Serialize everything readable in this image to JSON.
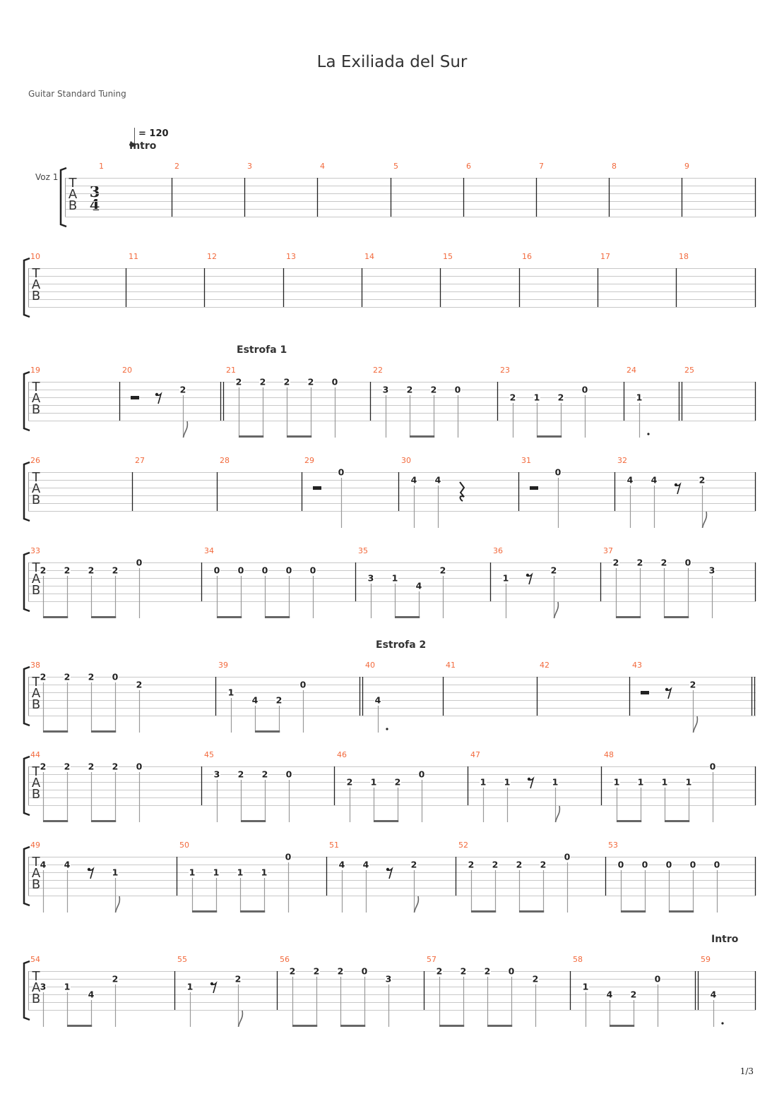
{
  "title": "La Exiliada del Sur",
  "tuning": "Guitar Standard Tuning",
  "track_name": "Voz 1",
  "tempo": {
    "label": "= 120",
    "value": 120
  },
  "time_signature": {
    "beats": "3",
    "beat_type": "4"
  },
  "tab_clef": [
    "T",
    "A",
    "B"
  ],
  "page_number": "1/3",
  "colors": {
    "measure_number": "#f26a3d",
    "staff_line": "#c8c8c8",
    "barline": "#222222",
    "stem": "#999999",
    "beam": "#666666"
  },
  "systems": [
    [
      1,
      2,
      3,
      4,
      5,
      6,
      7,
      8,
      9
    ],
    [
      10,
      11,
      12,
      13,
      14,
      15,
      16,
      17,
      18
    ],
    [
      19,
      20,
      21,
      22,
      23,
      24,
      25
    ],
    [
      26,
      27,
      28,
      29,
      30,
      31,
      32
    ],
    [
      33,
      34,
      35,
      36,
      37
    ],
    [
      38,
      39,
      40,
      41,
      42,
      43
    ],
    [
      44,
      45,
      46,
      47,
      48
    ],
    [
      49,
      50,
      51,
      52,
      53
    ],
    [
      54,
      55,
      56,
      57,
      58,
      59
    ]
  ],
  "measures": {
    "20": {
      "end": "double",
      "events": [
        {
          "rest": "h"
        },
        {
          "rest": "8"
        },
        {
          "d": "8",
          "s": 2,
          "f": 2
        }
      ]
    },
    "21": {
      "section": "Estrofa 1",
      "events": [
        {
          "d": "8",
          "s": 1,
          "f": 2
        },
        {
          "d": "8",
          "s": 1,
          "f": 2
        },
        {
          "d": "8",
          "s": 1,
          "f": 2
        },
        {
          "d": "8",
          "s": 1,
          "f": 2
        },
        {
          "d": "q",
          "s": 1,
          "f": 0
        }
      ]
    },
    "22": {
      "events": [
        {
          "d": "q",
          "s": 2,
          "f": 3
        },
        {
          "d": "8",
          "s": 2,
          "f": 2
        },
        {
          "d": "8",
          "s": 2,
          "f": 2
        },
        {
          "d": "q",
          "s": 2,
          "f": 0
        }
      ]
    },
    "23": {
      "events": [
        {
          "d": "q",
          "s": 3,
          "f": 2
        },
        {
          "d": "8",
          "s": 3,
          "f": 1
        },
        {
          "d": "8",
          "s": 3,
          "f": 2
        },
        {
          "d": "q",
          "s": 2,
          "f": 0
        }
      ]
    },
    "24": {
      "end": "double",
      "events": [
        {
          "d": "h.",
          "s": 3,
          "f": 1
        }
      ]
    },
    "29": {
      "events": [
        {
          "rest": "h"
        },
        {
          "d": "q",
          "s": 1,
          "f": 0
        }
      ]
    },
    "30": {
      "events": [
        {
          "d": "q",
          "s": 2,
          "f": 4
        },
        {
          "d": "q",
          "s": 2,
          "f": 4
        },
        {
          "rest": "q"
        }
      ]
    },
    "31": {
      "events": [
        {
          "rest": "h"
        },
        {
          "d": "q",
          "s": 1,
          "f": 0
        }
      ]
    },
    "32": {
      "events": [
        {
          "d": "q",
          "s": 2,
          "f": 4
        },
        {
          "d": "q",
          "s": 2,
          "f": 4
        },
        {
          "rest": "8"
        },
        {
          "d": "8",
          "s": 2,
          "f": 2
        }
      ]
    },
    "33": {
      "events": [
        {
          "d": "8",
          "s": 2,
          "f": 2
        },
        {
          "d": "8",
          "s": 2,
          "f": 2
        },
        {
          "d": "8",
          "s": 2,
          "f": 2
        },
        {
          "d": "8",
          "s": 2,
          "f": 2
        },
        {
          "d": "q",
          "s": 1,
          "f": 0
        }
      ]
    },
    "34": {
      "events": [
        {
          "d": "8",
          "s": 2,
          "f": 0
        },
        {
          "d": "8",
          "s": 2,
          "f": 0
        },
        {
          "d": "8",
          "s": 2,
          "f": 0
        },
        {
          "d": "8",
          "s": 2,
          "f": 0
        },
        {
          "d": "q",
          "s": 2,
          "f": 0
        }
      ]
    },
    "35": {
      "events": [
        {
          "d": "q",
          "s": 3,
          "f": 3
        },
        {
          "d": "8",
          "s": 3,
          "f": 1
        },
        {
          "d": "8",
          "s": 4,
          "f": 4
        },
        {
          "d": "q",
          "s": 2,
          "f": 2
        }
      ]
    },
    "36": {
      "events": [
        {
          "d": "h",
          "s": 3,
          "f": 1
        },
        {
          "rest": "8"
        },
        {
          "d": "8",
          "s": 2,
          "f": 2
        }
      ]
    },
    "37": {
      "events": [
        {
          "d": "8",
          "s": 1,
          "f": 2
        },
        {
          "d": "8",
          "s": 1,
          "f": 2
        },
        {
          "d": "8",
          "s": 1,
          "f": 2
        },
        {
          "d": "8",
          "s": 1,
          "f": 0
        },
        {
          "d": "q",
          "s": 2,
          "f": 3
        }
      ]
    },
    "38": {
      "events": [
        {
          "d": "8",
          "s": 1,
          "f": 2
        },
        {
          "d": "8",
          "s": 1,
          "f": 2
        },
        {
          "d": "8",
          "s": 1,
          "f": 2
        },
        {
          "d": "8",
          "s": 1,
          "f": 0
        },
        {
          "d": "q",
          "s": 2,
          "f": 2
        }
      ]
    },
    "39": {
      "end": "double",
      "events": [
        {
          "d": "q",
          "s": 3,
          "f": 1
        },
        {
          "d": "8",
          "s": 4,
          "f": 4
        },
        {
          "d": "8",
          "s": 4,
          "f": 2
        },
        {
          "d": "q",
          "s": 2,
          "f": 0
        }
      ]
    },
    "40": {
      "section": "Estrofa 2",
      "events": [
        {
          "d": "h.",
          "s": 4,
          "f": 4
        }
      ]
    },
    "43": {
      "end": "double",
      "events": [
        {
          "rest": "h"
        },
        {
          "rest": "8"
        },
        {
          "d": "8",
          "s": 2,
          "f": 2
        }
      ]
    },
    "44": {
      "events": [
        {
          "d": "8",
          "s": 1,
          "f": 2
        },
        {
          "d": "8",
          "s": 1,
          "f": 2
        },
        {
          "d": "8",
          "s": 1,
          "f": 2
        },
        {
          "d": "8",
          "s": 1,
          "f": 2
        },
        {
          "d": "q",
          "s": 1,
          "f": 0
        }
      ]
    },
    "45": {
      "events": [
        {
          "d": "q",
          "s": 2,
          "f": 3
        },
        {
          "d": "8",
          "s": 2,
          "f": 2
        },
        {
          "d": "8",
          "s": 2,
          "f": 2
        },
        {
          "d": "q",
          "s": 2,
          "f": 0
        }
      ]
    },
    "46": {
      "events": [
        {
          "d": "q",
          "s": 3,
          "f": 2
        },
        {
          "d": "8",
          "s": 3,
          "f": 1
        },
        {
          "d": "8",
          "s": 3,
          "f": 2
        },
        {
          "d": "q",
          "s": 2,
          "f": 0
        }
      ]
    },
    "47": {
      "events": [
        {
          "d": "q",
          "s": 3,
          "f": 1
        },
        {
          "d": "q",
          "s": 3,
          "f": 1
        },
        {
          "rest": "8"
        },
        {
          "d": "8",
          "s": 3,
          "f": 1
        }
      ]
    },
    "48": {
      "events": [
        {
          "d": "8",
          "s": 3,
          "f": 1
        },
        {
          "d": "8",
          "s": 3,
          "f": 1
        },
        {
          "d": "8",
          "s": 3,
          "f": 1
        },
        {
          "d": "8",
          "s": 3,
          "f": 1
        },
        {
          "d": "q",
          "s": 1,
          "f": 0
        }
      ]
    },
    "49": {
      "events": [
        {
          "d": "q",
          "s": 2,
          "f": 4
        },
        {
          "d": "q",
          "s": 2,
          "f": 4
        },
        {
          "rest": "8"
        },
        {
          "d": "8",
          "s": 3,
          "f": 1
        }
      ]
    },
    "50": {
      "events": [
        {
          "d": "8",
          "s": 3,
          "f": 1
        },
        {
          "d": "8",
          "s": 3,
          "f": 1
        },
        {
          "d": "8",
          "s": 3,
          "f": 1
        },
        {
          "d": "8",
          "s": 3,
          "f": 1
        },
        {
          "d": "q",
          "s": 1,
          "f": 0
        }
      ]
    },
    "51": {
      "events": [
        {
          "d": "q",
          "s": 2,
          "f": 4
        },
        {
          "d": "q",
          "s": 2,
          "f": 4
        },
        {
          "rest": "8"
        },
        {
          "d": "8",
          "s": 2,
          "f": 2
        }
      ]
    },
    "52": {
      "events": [
        {
          "d": "8",
          "s": 2,
          "f": 2
        },
        {
          "d": "8",
          "s": 2,
          "f": 2
        },
        {
          "d": "8",
          "s": 2,
          "f": 2
        },
        {
          "d": "8",
          "s": 2,
          "f": 2
        },
        {
          "d": "q",
          "s": 1,
          "f": 0
        }
      ]
    },
    "53": {
      "events": [
        {
          "d": "8",
          "s": 2,
          "f": 0
        },
        {
          "d": "8",
          "s": 2,
          "f": 0
        },
        {
          "d": "8",
          "s": 2,
          "f": 0
        },
        {
          "d": "8",
          "s": 2,
          "f": 0
        },
        {
          "d": "q",
          "s": 2,
          "f": 0
        }
      ]
    },
    "54": {
      "events": [
        {
          "d": "q",
          "s": 3,
          "f": 3
        },
        {
          "d": "8",
          "s": 3,
          "f": 1
        },
        {
          "d": "8",
          "s": 4,
          "f": 4
        },
        {
          "d": "q",
          "s": 2,
          "f": 2
        }
      ]
    },
    "55": {
      "events": [
        {
          "d": "h",
          "s": 3,
          "f": 1
        },
        {
          "rest": "8"
        },
        {
          "d": "8",
          "s": 2,
          "f": 2
        }
      ]
    },
    "56": {
      "events": [
        {
          "d": "8",
          "s": 1,
          "f": 2
        },
        {
          "d": "8",
          "s": 1,
          "f": 2
        },
        {
          "d": "8",
          "s": 1,
          "f": 2
        },
        {
          "d": "8",
          "s": 1,
          "f": 0
        },
        {
          "d": "q",
          "s": 2,
          "f": 3
        }
      ]
    },
    "57": {
      "events": [
        {
          "d": "8",
          "s": 1,
          "f": 2
        },
        {
          "d": "8",
          "s": 1,
          "f": 2
        },
        {
          "d": "8",
          "s": 1,
          "f": 2
        },
        {
          "d": "8",
          "s": 1,
          "f": 0
        },
        {
          "d": "q",
          "s": 2,
          "f": 2
        }
      ]
    },
    "58": {
      "end": "double",
      "events": [
        {
          "d": "q",
          "s": 3,
          "f": 1
        },
        {
          "d": "8",
          "s": 4,
          "f": 4
        },
        {
          "d": "8",
          "s": 4,
          "f": 2
        },
        {
          "d": "q",
          "s": 2,
          "f": 0
        }
      ]
    },
    "59": {
      "section": "Intro",
      "events": [
        {
          "d": "h.",
          "s": 4,
          "f": 4
        }
      ]
    }
  },
  "first_section": "Intro"
}
